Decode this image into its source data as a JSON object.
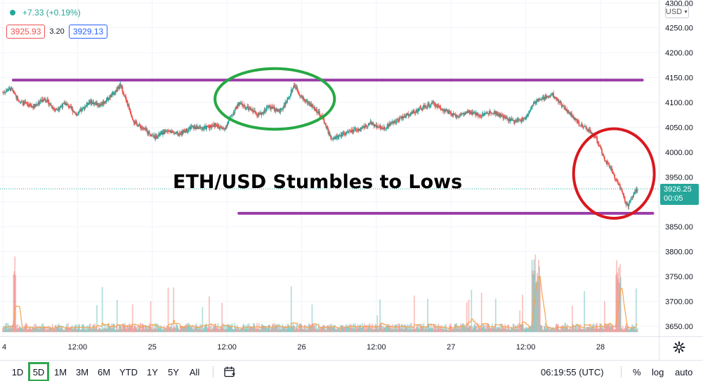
{
  "header": {
    "change_text": "+7.33 (+0.19%)",
    "bid": "3925.93",
    "spread": "3.20",
    "ask": "3929.13"
  },
  "currency": {
    "label": "USD"
  },
  "price_tag": {
    "price": "3926.25",
    "countdown": "00:05"
  },
  "headline": "ETH/USD Stumbles to Lows",
  "bottom_bar": {
    "ranges": [
      "1D",
      "5D",
      "1M",
      "3M",
      "6M",
      "YTD",
      "1Y",
      "5Y",
      "All"
    ],
    "active_range": "5D",
    "clock": "06:19:55 (UTC)",
    "percent_label": "%",
    "log_label": "log",
    "auto_label": "auto"
  },
  "colors": {
    "up": "#26a69a",
    "down": "#ef5350",
    "ma_line": "#f7a350",
    "resistance_support": "#9c3ea8",
    "green_circle": "#27a844",
    "red_circle": "#d9181f"
  },
  "chart_data": {
    "type": "candlestick",
    "symbol": "ETH/USD",
    "y_axis_ticks": [
      4300,
      4250,
      4200,
      4150,
      4100,
      4050,
      4000,
      3950,
      3900,
      3850,
      3800,
      3750,
      3700,
      3650
    ],
    "y_axis_tick_labels": [
      "4300.00",
      "4250.00",
      "4200.00",
      "4150.00",
      "4100.00",
      "4050.00",
      "4000.00",
      "3950.00",
      "3900.00",
      "3850.00",
      "3800.00",
      "3750.00",
      "3700.00",
      "3650.00"
    ],
    "ylim": [
      3630,
      4306
    ],
    "x_axis_labels": [
      "4",
      "12:00",
      "25",
      "12:00",
      "26",
      "12:00",
      "27",
      "12:00",
      "28"
    ],
    "x_axis_label_positions": [
      0,
      0.5,
      1,
      1.5,
      2,
      2.5,
      3,
      3.5,
      4
    ],
    "xlim": [
      0,
      4.39
    ],
    "close_path": [
      [
        0.0,
        4120
      ],
      [
        0.05,
        4128
      ],
      [
        0.12,
        4100
      ],
      [
        0.2,
        4092
      ],
      [
        0.28,
        4108
      ],
      [
        0.35,
        4085
      ],
      [
        0.42,
        4098
      ],
      [
        0.5,
        4075
      ],
      [
        0.58,
        4102
      ],
      [
        0.65,
        4095
      ],
      [
        0.72,
        4112
      ],
      [
        0.79,
        4134
      ],
      [
        0.83,
        4100
      ],
      [
        0.88,
        4060
      ],
      [
        0.95,
        4045
      ],
      [
        1.02,
        4030
      ],
      [
        1.1,
        4044
      ],
      [
        1.18,
        4036
      ],
      [
        1.26,
        4050
      ],
      [
        1.34,
        4048
      ],
      [
        1.42,
        4055
      ],
      [
        1.48,
        4045
      ],
      [
        1.52,
        4068
      ],
      [
        1.58,
        4098
      ],
      [
        1.66,
        4085
      ],
      [
        1.72,
        4075
      ],
      [
        1.78,
        4092
      ],
      [
        1.85,
        4082
      ],
      [
        1.9,
        4100
      ],
      [
        1.95,
        4136
      ],
      [
        2.0,
        4110
      ],
      [
        2.08,
        4090
      ],
      [
        2.14,
        4070
      ],
      [
        2.2,
        4024
      ],
      [
        2.28,
        4038
      ],
      [
        2.38,
        4045
      ],
      [
        2.46,
        4058
      ],
      [
        2.55,
        4048
      ],
      [
        2.62,
        4062
      ],
      [
        2.7,
        4074
      ],
      [
        2.8,
        4088
      ],
      [
        2.88,
        4098
      ],
      [
        2.95,
        4085
      ],
      [
        3.03,
        4072
      ],
      [
        3.12,
        4080
      ],
      [
        3.2,
        4074
      ],
      [
        3.28,
        4082
      ],
      [
        3.35,
        4070
      ],
      [
        3.42,
        4062
      ],
      [
        3.5,
        4068
      ],
      [
        3.56,
        4100
      ],
      [
        3.62,
        4110
      ],
      [
        3.68,
        4116
      ],
      [
        3.74,
        4095
      ],
      [
        3.8,
        4076
      ],
      [
        3.86,
        4055
      ],
      [
        3.92,
        4045
      ],
      [
        3.97,
        4028
      ],
      [
        4.03,
        3985
      ],
      [
        4.08,
        3960
      ],
      [
        4.13,
        3930
      ],
      [
        4.18,
        3890
      ],
      [
        4.22,
        3915
      ],
      [
        4.25,
        3926.25
      ]
    ],
    "current_price": 3926.25,
    "volume_baseline": 3638,
    "annotations": [
      {
        "type": "horizontal_line",
        "label": "resistance",
        "y": 4145,
        "x_start": 0.07,
        "x_end": 4.28
      },
      {
        "type": "horizontal_line",
        "label": "support",
        "y": 3877,
        "x_start": 1.58,
        "x_end": 4.35
      },
      {
        "type": "ellipse",
        "label": "green_circle",
        "center_x": 1.82,
        "center_y": 4107,
        "radius_x": 0.4,
        "radius_y": 61
      },
      {
        "type": "ellipse",
        "label": "red_circle",
        "center_x": 4.09,
        "center_y": 3957,
        "radius_x": 0.27,
        "radius_y": 90
      }
    ],
    "legend": "none",
    "grid": true
  }
}
